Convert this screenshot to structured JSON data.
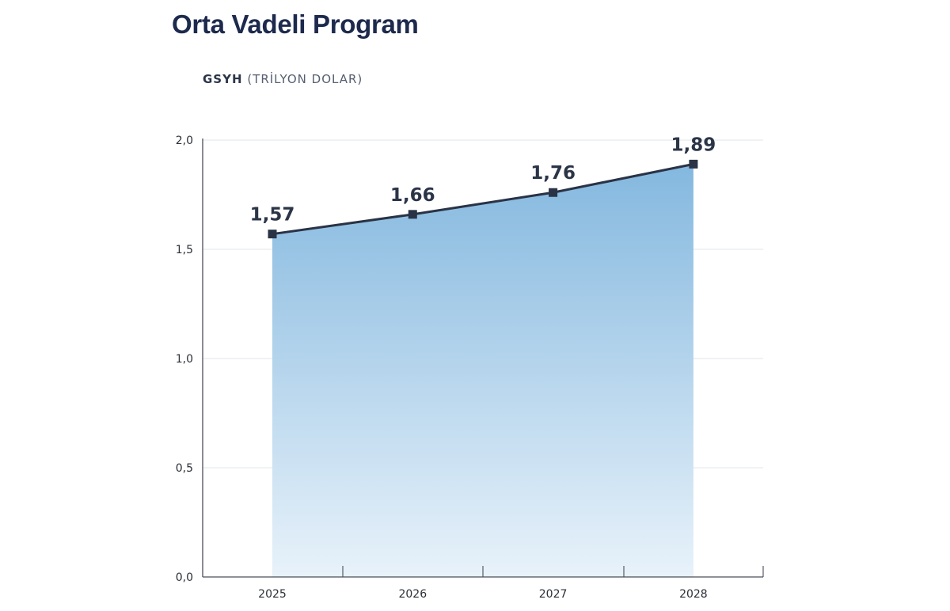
{
  "title": "Orta Vadeli Program",
  "subtitle_bold": "GSYH",
  "subtitle_light": "(TRİLYON DOLAR)",
  "chart_data": {
    "type": "area",
    "title": "Orta Vadeli Program",
    "ylabel": "GSYH (TRİLYON DOLAR)",
    "categories": [
      "2025",
      "2026",
      "2027",
      "2028"
    ],
    "values": [
      1.57,
      1.66,
      1.76,
      1.89
    ],
    "value_labels": [
      "1,57",
      "1,66",
      "1,76",
      "1,89"
    ],
    "ylim": [
      0,
      2
    ],
    "yticks": [
      0,
      0.5,
      1,
      1.5,
      2
    ],
    "ytick_labels": [
      "0,0",
      "0,5",
      "1,0",
      "1,5",
      "2,0"
    ],
    "grid": true,
    "legend": "none",
    "colors": {
      "line": "#2a3345",
      "marker": "#2a3345",
      "area_top": "#84b8df",
      "area_bottom": "#e8f2fa",
      "grid": "#e2e5ea",
      "axis": "#4a4f58",
      "text": "#2b3548"
    }
  }
}
